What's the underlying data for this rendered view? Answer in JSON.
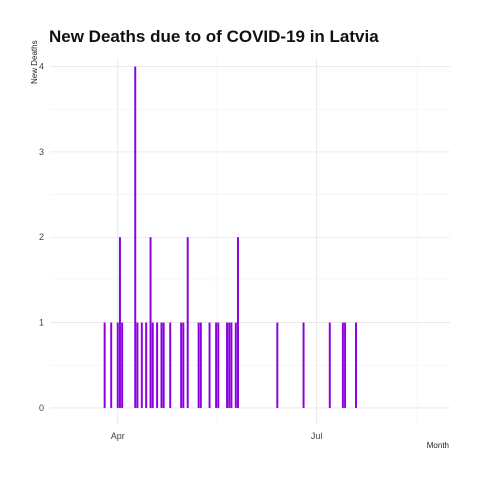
{
  "chart_data": {
    "type": "bar",
    "title": "New Deaths due to of COVID-19 in Latvia",
    "xlabel": "Month",
    "ylabel": "New Deaths",
    "x_start": "2020-03-01",
    "x_end": "2020-08-31",
    "ylim": [
      -0.2,
      4.1
    ],
    "y_ticks": [
      0,
      1,
      2,
      3,
      4
    ],
    "x_ticks": [
      {
        "date": "2020-04-01",
        "label": "Apr"
      },
      {
        "date": "2020-07-01",
        "label": "Jul"
      }
    ],
    "x_minor": [
      "2020-05-16",
      "2020-08-16"
    ],
    "grid": true,
    "bar_color": "#8B00E0",
    "series": [
      {
        "x": [
          "2020-03-26",
          "2020-03-29",
          "2020-04-01",
          "2020-04-02",
          "2020-04-03",
          "2020-04-09",
          "2020-04-10",
          "2020-04-12",
          "2020-04-14",
          "2020-04-16",
          "2020-04-17",
          "2020-04-19",
          "2020-04-21",
          "2020-04-22",
          "2020-04-25",
          "2020-04-30",
          "2020-05-01",
          "2020-05-03",
          "2020-05-08",
          "2020-05-09",
          "2020-05-13",
          "2020-05-16",
          "2020-05-17",
          "2020-05-21",
          "2020-05-22",
          "2020-05-23",
          "2020-05-25",
          "2020-05-26",
          "2020-06-13",
          "2020-06-25",
          "2020-07-07",
          "2020-07-13",
          "2020-07-14",
          "2020-07-19"
        ],
        "values": [
          1,
          1,
          1,
          2,
          1,
          4,
          1,
          1,
          1,
          2,
          1,
          1,
          1,
          1,
          1,
          1,
          1,
          2,
          1,
          1,
          1,
          1,
          1,
          1,
          1,
          1,
          1,
          2,
          1,
          1,
          1,
          1,
          1,
          1
        ]
      }
    ]
  }
}
